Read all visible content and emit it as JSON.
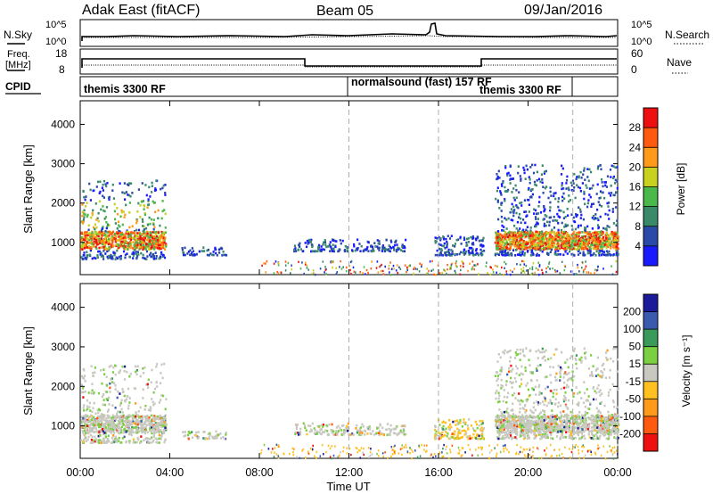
{
  "header": {
    "title": "Adak East (fitACF)",
    "beam": "Beam 05",
    "date": "09/Jan/2016"
  },
  "top_panel": {
    "nsky_label": "N.Sky",
    "nsearch_label": "N.Search",
    "freq_label_line1": "Freq.",
    "freq_label_line2": "[MHz]",
    "nave_label": "Nave",
    "cpid_label": "CPID",
    "noise_ticks_left": [
      "10^5",
      "10^0"
    ],
    "noise_ticks_right": [
      "10^5",
      "10^0"
    ],
    "freq_ticks": [
      "18",
      "8"
    ],
    "nave_ticks": [
      "60",
      "0"
    ],
    "cpid_segments": [
      {
        "text": "themis 3300 RF",
        "start": 0,
        "end": 12
      },
      {
        "text": "normalsound (fast) 157 RF",
        "start": 12,
        "end": 22
      },
      {
        "text": "themis 3300 RF",
        "start": 18,
        "end": 22
      }
    ]
  },
  "power_colorbar": {
    "label": "Power [dB]",
    "ticks": [
      "4",
      "8",
      "12",
      "16",
      "20",
      "24",
      "28"
    ],
    "colors": [
      "#1a1aff",
      "#2a4aaa",
      "#3a8a6a",
      "#4ab84a",
      "#c8d020",
      "#ff9a1a",
      "#ff5a10",
      "#ee1010"
    ]
  },
  "velocity_colorbar": {
    "label": "Velocity [m s⁻¹]",
    "ticks": [
      "-200",
      "-100",
      "-50",
      "-15",
      "15",
      "50",
      "100",
      "200"
    ],
    "colors": [
      "#ee1010",
      "#ff5a10",
      "#ff9a1a",
      "#ffc020",
      "#c8c8c0",
      "#7ad040",
      "#3a9a5a",
      "#3a5ab0",
      "#1a1a9a"
    ]
  },
  "chart_data": [
    {
      "type": "heatmap",
      "title": "Power",
      "ylabel": "Slant Range [km]",
      "yticks": [
        "1000",
        "2000",
        "3000",
        "4000"
      ],
      "ylim": [
        180,
        4600
      ],
      "xlim": [
        0,
        24
      ],
      "time_markers": [
        12,
        16,
        22
      ],
      "scatter_regions": [
        {
          "t0": 0.0,
          "t1": 3.8,
          "r0": 600,
          "r1": 2600,
          "color": "mixed"
        },
        {
          "t0": 4.5,
          "t1": 6.5,
          "r0": 700,
          "r1": 900,
          "color": "blue"
        },
        {
          "t0": 9.5,
          "t1": 14.5,
          "r0": 800,
          "r1": 1100,
          "color": "blue/green"
        },
        {
          "t0": 15.8,
          "t1": 18.0,
          "r0": 700,
          "r1": 1200,
          "color": "blue/green"
        },
        {
          "t0": 18.5,
          "t1": 24.0,
          "r0": 700,
          "r1": 3000,
          "color": "mixed"
        }
      ]
    },
    {
      "type": "heatmap",
      "title": "Velocity",
      "ylabel": "Slant Range [km]",
      "yticks": [
        "1000",
        "2000",
        "3000",
        "4000"
      ],
      "ylim": [
        180,
        4600
      ],
      "xlim": [
        0,
        24
      ],
      "time_markers": [
        12,
        16,
        22
      ],
      "xlabel": "Time UT",
      "xticks": [
        "00:00",
        "04:00",
        "08:00",
        "12:00",
        "16:00",
        "20:00",
        "00:00"
      ]
    }
  ]
}
